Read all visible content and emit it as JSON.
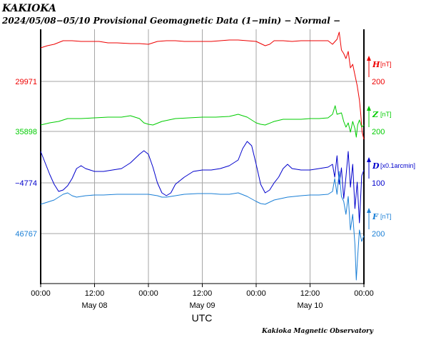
{
  "header": {
    "station": "KAKIOKA",
    "subtitle": "2024/05/08−05/10  Provisional Geomagnetic Data (1−min)  − Normal −"
  },
  "footer": {
    "observatory": "Kakioka Magnetic Observatory"
  },
  "chart_data": {
    "type": "line",
    "xlabel": "UTC",
    "x_ticks": [
      "00:00",
      "12:00",
      "00:00",
      "12:00",
      "00:00",
      "12:00",
      "00:00"
    ],
    "x_tick_hours": [
      0,
      12,
      24,
      36,
      48,
      60,
      72
    ],
    "x_date_labels": [
      {
        "label": "May 08",
        "hour": 12
      },
      {
        "label": "May 09",
        "hour": 36
      },
      {
        "label": "May 10",
        "hour": 60
      }
    ],
    "xlim_hours": [
      0,
      72
    ],
    "grid": true,
    "series": [
      {
        "name": "H",
        "unit": "[nT]",
        "color": "#ee0000",
        "base_label": "29971",
        "scale_label": "200",
        "points": [
          [
            0,
            67
          ],
          [
            1.5,
            64
          ],
          [
            3,
            62
          ],
          [
            5,
            57
          ],
          [
            7,
            57
          ],
          [
            9,
            58
          ],
          [
            11,
            58
          ],
          [
            13,
            58
          ],
          [
            15,
            60
          ],
          [
            17,
            60
          ],
          [
            20,
            61
          ],
          [
            22,
            61
          ],
          [
            24,
            62
          ],
          [
            25,
            60
          ],
          [
            26,
            58
          ],
          [
            28,
            57
          ],
          [
            30,
            57
          ],
          [
            32,
            58
          ],
          [
            34,
            58
          ],
          [
            36,
            58
          ],
          [
            38,
            58
          ],
          [
            40,
            57
          ],
          [
            42,
            56
          ],
          [
            44,
            56
          ],
          [
            46,
            57
          ],
          [
            48,
            58
          ],
          [
            49,
            61
          ],
          [
            50,
            64
          ],
          [
            51,
            62
          ],
          [
            52,
            57
          ],
          [
            54,
            57
          ],
          [
            56,
            58
          ],
          [
            58,
            57
          ],
          [
            60,
            57
          ],
          [
            62,
            57
          ],
          [
            64,
            57
          ],
          [
            65,
            62
          ],
          [
            66,
            55
          ],
          [
            66.5,
            45
          ],
          [
            67,
            70
          ],
          [
            67.5,
            75
          ],
          [
            68,
            82
          ],
          [
            68.5,
            72
          ],
          [
            69,
            95
          ],
          [
            69.5,
            90
          ],
          [
            70,
            105
          ],
          [
            70.5,
            120
          ],
          [
            71,
            140
          ],
          [
            71.3,
            160
          ],
          [
            71.6,
            185
          ],
          [
            72,
            195
          ]
        ]
      },
      {
        "name": "Z",
        "unit": "[nT]",
        "color": "#00cc00",
        "base_label": "35898",
        "scale_label": "200",
        "points": [
          [
            0,
            175
          ],
          [
            2,
            172
          ],
          [
            4,
            170
          ],
          [
            6,
            166
          ],
          [
            9,
            166
          ],
          [
            12,
            165
          ],
          [
            15,
            164
          ],
          [
            18,
            164
          ],
          [
            20,
            162
          ],
          [
            22,
            166
          ],
          [
            23,
            172
          ],
          [
            24,
            174
          ],
          [
            25,
            175
          ],
          [
            27,
            170
          ],
          [
            30,
            166
          ],
          [
            33,
            165
          ],
          [
            36,
            164
          ],
          [
            39,
            164
          ],
          [
            42,
            163
          ],
          [
            44,
            160
          ],
          [
            46,
            164
          ],
          [
            48,
            172
          ],
          [
            49,
            174
          ],
          [
            50,
            175
          ],
          [
            52,
            170
          ],
          [
            54,
            167
          ],
          [
            56,
            167
          ],
          [
            58,
            167
          ],
          [
            60,
            166
          ],
          [
            62,
            166
          ],
          [
            64,
            165
          ],
          [
            65,
            160
          ],
          [
            65.6,
            148
          ],
          [
            66,
            160
          ],
          [
            67,
            158
          ],
          [
            67.5,
            170
          ],
          [
            68,
            178
          ],
          [
            68.5,
            172
          ],
          [
            69,
            185
          ],
          [
            69.5,
            170
          ],
          [
            70,
            180
          ],
          [
            70.3,
            192
          ],
          [
            70.6,
            175
          ],
          [
            71,
            168
          ],
          [
            71.5,
            178
          ],
          [
            72,
            175
          ]
        ]
      },
      {
        "name": "D",
        "unit": "[x0.1arcmin]",
        "color": "#0000cc",
        "base_label": "−4774",
        "scale_label": "100",
        "points": [
          [
            0,
            212
          ],
          [
            1,
            228
          ],
          [
            2,
            244
          ],
          [
            3,
            258
          ],
          [
            4,
            268
          ],
          [
            5,
            266
          ],
          [
            6,
            260
          ],
          [
            7,
            250
          ],
          [
            8,
            236
          ],
          [
            9,
            232
          ],
          [
            10,
            236
          ],
          [
            12,
            240
          ],
          [
            14,
            240
          ],
          [
            16,
            238
          ],
          [
            18,
            236
          ],
          [
            20,
            228
          ],
          [
            22,
            216
          ],
          [
            23,
            211
          ],
          [
            24,
            216
          ],
          [
            25,
            234
          ],
          [
            26,
            256
          ],
          [
            27,
            270
          ],
          [
            28,
            274
          ],
          [
            29,
            270
          ],
          [
            30,
            258
          ],
          [
            32,
            248
          ],
          [
            34,
            240
          ],
          [
            36,
            238
          ],
          [
            38,
            238
          ],
          [
            40,
            236
          ],
          [
            42,
            232
          ],
          [
            44,
            224
          ],
          [
            45,
            208
          ],
          [
            46,
            198
          ],
          [
            47,
            204
          ],
          [
            48,
            230
          ],
          [
            49,
            258
          ],
          [
            50,
            270
          ],
          [
            51,
            266
          ],
          [
            52,
            256
          ],
          [
            53,
            248
          ],
          [
            54,
            236
          ],
          [
            55,
            230
          ],
          [
            56,
            236
          ],
          [
            58,
            238
          ],
          [
            60,
            238
          ],
          [
            62,
            236
          ],
          [
            64,
            234
          ],
          [
            65,
            230
          ],
          [
            65.5,
            248
          ],
          [
            66,
            218
          ],
          [
            66.5,
            258
          ],
          [
            67,
            235
          ],
          [
            67.5,
            278
          ],
          [
            68,
            248
          ],
          [
            68.5,
            212
          ],
          [
            69,
            262
          ],
          [
            69.5,
            230
          ],
          [
            70,
            292
          ],
          [
            70.5,
            255
          ],
          [
            71,
            312
          ],
          [
            71.5,
            246
          ],
          [
            72,
            238
          ]
        ]
      },
      {
        "name": "F",
        "unit": "[nT]",
        "color": "#1a7fd6",
        "base_label": "46767",
        "scale_label": "200",
        "points": [
          [
            0,
            286
          ],
          [
            2,
            282
          ],
          [
            3,
            280
          ],
          [
            4,
            276
          ],
          [
            5,
            272
          ],
          [
            6,
            270
          ],
          [
            7,
            274
          ],
          [
            8,
            276
          ],
          [
            10,
            274
          ],
          [
            12,
            273
          ],
          [
            14,
            273
          ],
          [
            17,
            272
          ],
          [
            20,
            272
          ],
          [
            22,
            272
          ],
          [
            24,
            272
          ],
          [
            26,
            274
          ],
          [
            27,
            276
          ],
          [
            28,
            276
          ],
          [
            30,
            274
          ],
          [
            32,
            272
          ],
          [
            35,
            271
          ],
          [
            38,
            271
          ],
          [
            40,
            272
          ],
          [
            42,
            272
          ],
          [
            44,
            270
          ],
          [
            46,
            275
          ],
          [
            48,
            282
          ],
          [
            49,
            285
          ],
          [
            50,
            286
          ],
          [
            52,
            280
          ],
          [
            55,
            276
          ],
          [
            58,
            274
          ],
          [
            60,
            273
          ],
          [
            62,
            273
          ],
          [
            64,
            272
          ],
          [
            65,
            268
          ],
          [
            65.5,
            250
          ],
          [
            66,
            272
          ],
          [
            66.5,
            240
          ],
          [
            67,
            275
          ],
          [
            67.5,
            282
          ],
          [
            68,
            300
          ],
          [
            68.5,
            275
          ],
          [
            69,
            322
          ],
          [
            69.5,
            300
          ],
          [
            70,
            342
          ],
          [
            70.3,
            392
          ],
          [
            70.6,
            360
          ],
          [
            71,
            322
          ],
          [
            71.5,
            338
          ],
          [
            72,
            330
          ]
        ]
      }
    ]
  }
}
